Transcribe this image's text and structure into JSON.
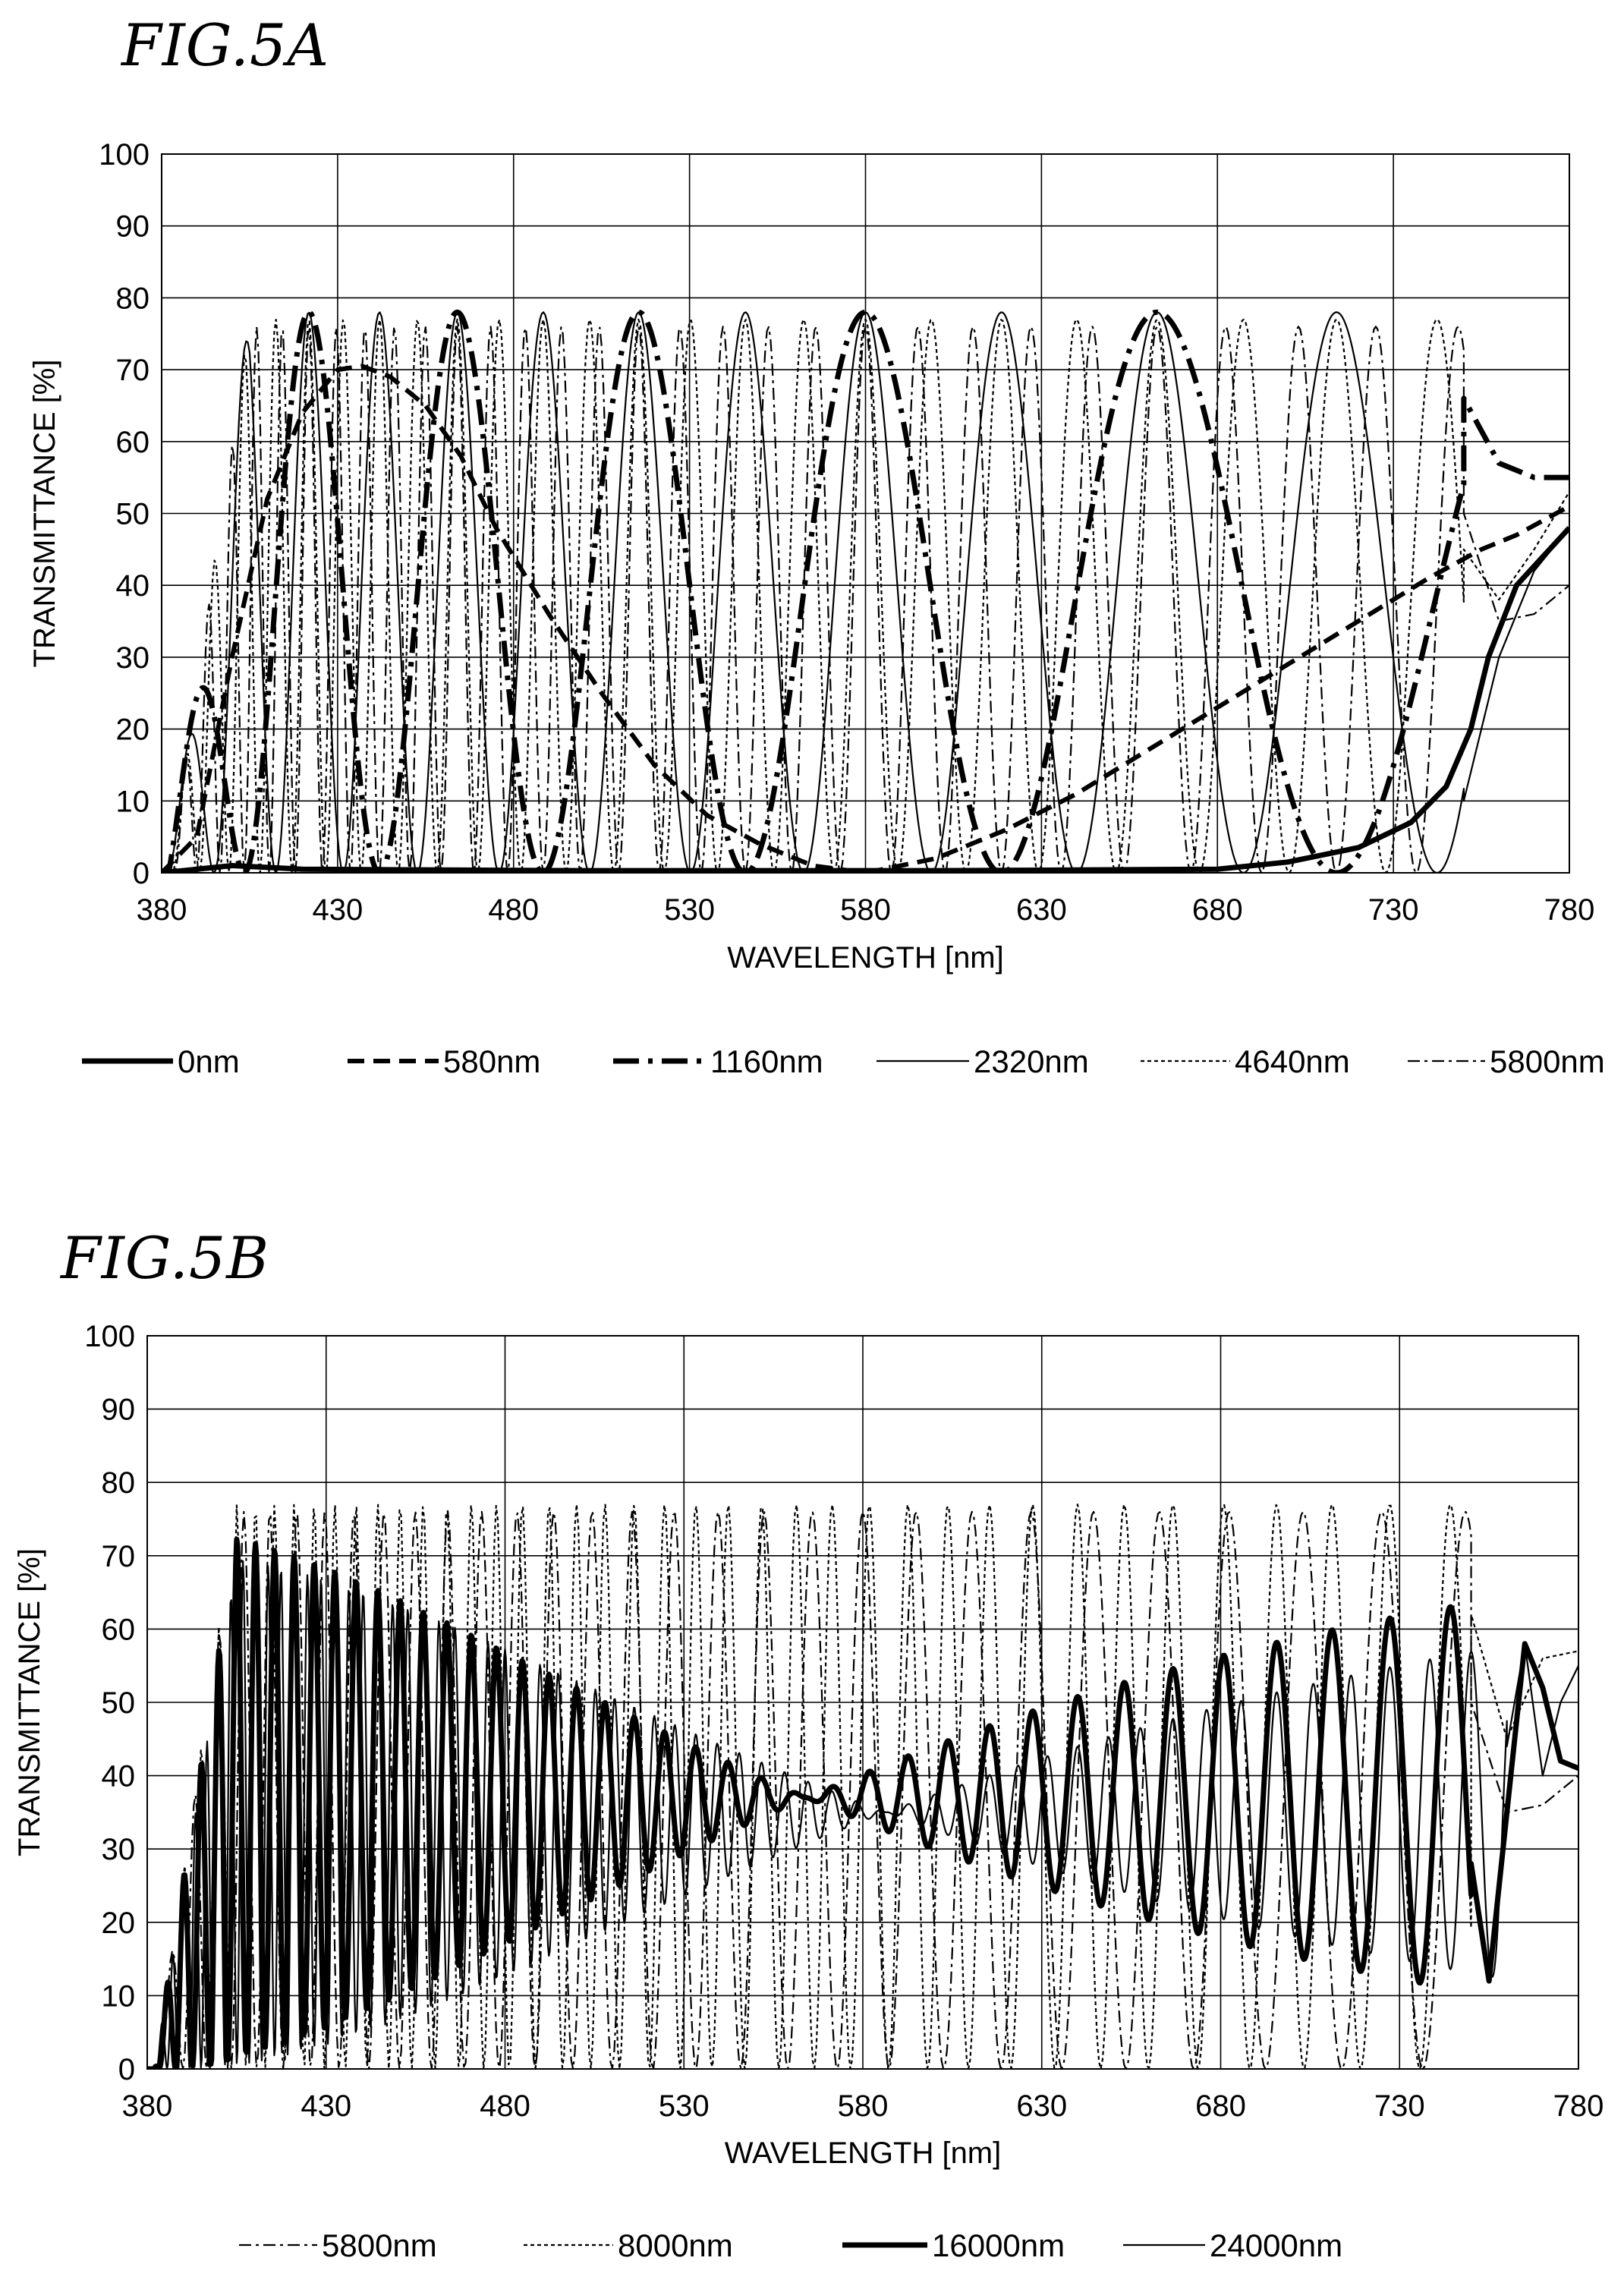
{
  "chart_data": [
    {
      "id": "fig5a",
      "title": "FIG.5A",
      "type": "line",
      "xlabel": "WAVELENGTH [nm]",
      "ylabel": "TRANSMITTANCE [%]",
      "xlim": [
        380,
        780
      ],
      "ylim": [
        0,
        100
      ],
      "xticks": [
        380,
        430,
        480,
        530,
        580,
        630,
        680,
        730,
        780
      ],
      "yticks": [
        0,
        10,
        20,
        30,
        40,
        50,
        60,
        70,
        80,
        90,
        100
      ],
      "grid": true,
      "legend_position": "bottom",
      "series": [
        {
          "name": "0nm",
          "style": "solid-bold",
          "points": [
            [
              380,
              0
            ],
            [
              400,
              1
            ],
            [
              420,
              0.5
            ],
            [
              500,
              0.3
            ],
            [
              600,
              0.3
            ],
            [
              680,
              0.5
            ],
            [
              700,
              1.5
            ],
            [
              720,
              3.5
            ],
            [
              735,
              7
            ],
            [
              745,
              12
            ],
            [
              752,
              20
            ],
            [
              757,
              30
            ],
            [
              765,
              40
            ],
            [
              780,
              48
            ]
          ]
        },
        {
          "name": "580nm",
          "style": "dashed-bold",
          "points": [
            [
              380,
              0
            ],
            [
              390,
              5
            ],
            [
              400,
              30
            ],
            [
              410,
              52
            ],
            [
              420,
              64
            ],
            [
              430,
              70
            ],
            [
              437,
              70.5
            ],
            [
              445,
              69
            ],
            [
              455,
              65
            ],
            [
              465,
              58
            ],
            [
              475,
              48
            ],
            [
              490,
              36
            ],
            [
              505,
              25
            ],
            [
              520,
              15
            ],
            [
              535,
              8
            ],
            [
              550,
              4
            ],
            [
              565,
              1
            ],
            [
              580,
              0
            ],
            [
              600,
              2
            ],
            [
              620,
              6
            ],
            [
              640,
              11
            ],
            [
              660,
              17
            ],
            [
              680,
              23
            ],
            [
              700,
              29
            ],
            [
              720,
              35
            ],
            [
              740,
              41
            ],
            [
              755,
              45
            ],
            [
              765,
              47
            ],
            [
              780,
              51
            ]
          ]
        },
        {
          "name": "1160nm",
          "style": "dashdot-bold",
          "cos": {
            "p": 4640,
            "k": 1,
            "A": 78,
            "start": 382,
            "end": 750,
            "rise": 405
          },
          "tail": [
            [
              750,
              66
            ],
            [
              760,
              57
            ],
            [
              770,
              55
            ],
            [
              780,
              55
            ]
          ]
        },
        {
          "name": "2320nm",
          "style": "solid-thin",
          "cos": {
            "p": 9280,
            "k": 1,
            "A": 78,
            "start": 382,
            "end": 750,
            "rise": 405
          },
          "tail": [
            [
              750,
              10
            ],
            [
              760,
              30
            ],
            [
              770,
              42
            ],
            [
              780,
              48
            ]
          ]
        },
        {
          "name": "4640nm",
          "style": "dotted-thin",
          "cos": {
            "p": 18560,
            "k": 1,
            "A": 77,
            "start": 382,
            "end": 750,
            "rise": 405
          },
          "tail": [
            [
              750,
              45
            ],
            [
              760,
              38
            ],
            [
              770,
              45
            ],
            [
              780,
              53
            ]
          ]
        },
        {
          "name": "5800nm",
          "style": "dashdot-thin",
          "cos": {
            "p": 23200,
            "k": 1,
            "A": 76,
            "start": 382,
            "end": 750,
            "rise": 405
          },
          "tail": [
            [
              750,
              50
            ],
            [
              760,
              35
            ],
            [
              770,
              36
            ],
            [
              780,
              40
            ]
          ]
        }
      ]
    },
    {
      "id": "fig5b",
      "title": "FIG.5B",
      "type": "line",
      "xlabel": "WAVELENGTH [nm]",
      "ylabel": "TRANSMITTANCE [%]",
      "xlim": [
        380,
        780
      ],
      "ylim": [
        0,
        100
      ],
      "xticks": [
        380,
        430,
        480,
        530,
        580,
        630,
        680,
        730,
        780
      ],
      "yticks": [
        0,
        10,
        20,
        30,
        40,
        50,
        60,
        70,
        80,
        90,
        100
      ],
      "grid": true,
      "legend_position": "bottom",
      "series": [
        {
          "name": "5800nm",
          "style": "dashdot-thin",
          "cos": {
            "p": 23200,
            "k": 1,
            "A": 76,
            "start": 382,
            "end": 750,
            "rise": 405
          },
          "tail": [
            [
              750,
              50
            ],
            [
              760,
              35
            ],
            [
              770,
              36
            ],
            [
              780,
              40
            ]
          ]
        },
        {
          "name": "8000nm",
          "style": "dotted-thin",
          "cos": {
            "p": 32000,
            "k": 1,
            "A": 77,
            "start": 382,
            "end": 750,
            "rise": 405
          },
          "tail": [
            [
              750,
              62
            ],
            [
              760,
              45
            ],
            [
              770,
              56
            ],
            [
              780,
              57
            ]
          ]
        },
        {
          "name": "16000nm",
          "style": "solid-bold",
          "beat": {
            "p": 32000,
            "A": 74,
            "centerDeg": 95,
            "start": 382,
            "end": 750,
            "rise": 405
          },
          "tail": [
            [
              750,
              28
            ],
            [
              755,
              12
            ],
            [
              765,
              58
            ],
            [
              770,
              52
            ],
            [
              775,
              42
            ],
            [
              780,
              41
            ]
          ]
        },
        {
          "name": "24000nm",
          "style": "solid-thin",
          "beat": {
            "p": 48000,
            "A": 70,
            "centerDeg": 88,
            "start": 382,
            "end": 760,
            "rise": 405
          },
          "tail": [
            [
              760,
              44
            ],
            [
              765,
              58
            ],
            [
              770,
              40
            ],
            [
              775,
              50
            ],
            [
              780,
              55
            ]
          ]
        }
      ]
    }
  ]
}
